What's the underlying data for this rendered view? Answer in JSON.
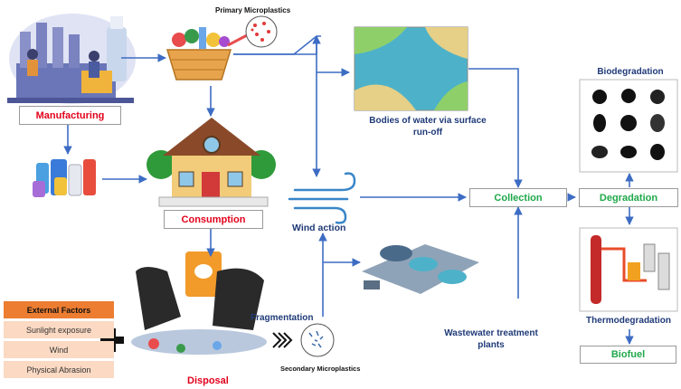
{
  "nodes": {
    "manufacturing": "Manufacturing",
    "primary_microplastics": "Primary Microplastics",
    "consumption": "Consumption",
    "bodies_of_water": "Bodies of water via surface run-off",
    "wind_action": "Wind action",
    "collection": "Collection",
    "degradation": "Degradation",
    "biodegradation": "Biodegradation",
    "thermodegradation": "Thermodegradation",
    "biofuel": "Biofuel",
    "wastewater": "Wastewater treatment plants",
    "fragmentation": "Fragmentation",
    "secondary_microplastics": "Secondary Microplastics",
    "disposal": "Disposal"
  },
  "external_factors": {
    "title": "External Factors",
    "items": [
      "Sunlight exposure",
      "Wind",
      "Physical Abrasion"
    ]
  },
  "colors": {
    "red_label": "#e3001b",
    "green_label": "#1fa84a",
    "navy_label": "#1f3a78",
    "arrow": "#3d6cc4",
    "factor_header": "#ed7d31",
    "factor_item": "#fbd9c3"
  }
}
